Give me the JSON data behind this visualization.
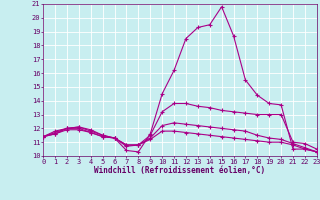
{
  "xlabel": "Windchill (Refroidissement éolien,°C)",
  "bg_color": "#c8eef0",
  "grid_color": "#ffffff",
  "line_color": "#aa0088",
  "xmin": 0,
  "xmax": 23,
  "ymin": 10,
  "ymax": 21,
  "lines": [
    {
      "x": [
        0,
        1,
        2,
        3,
        4,
        5,
        6,
        7,
        8,
        9,
        10,
        11,
        12,
        13,
        14,
        15,
        16,
        17,
        18,
        19,
        20,
        21,
        22,
        23
      ],
      "y": [
        11.4,
        11.8,
        12.0,
        12.1,
        11.9,
        11.5,
        11.3,
        10.4,
        10.3,
        11.6,
        14.5,
        16.2,
        18.5,
        19.3,
        19.5,
        20.8,
        18.7,
        15.5,
        14.4,
        13.8,
        13.7,
        10.5,
        10.5,
        10.3
      ]
    },
    {
      "x": [
        0,
        1,
        2,
        3,
        4,
        5,
        6,
        7,
        8,
        9,
        10,
        11,
        12,
        13,
        14,
        15,
        16,
        17,
        18,
        19,
        20,
        21,
        22,
        23
      ],
      "y": [
        11.4,
        11.7,
        12.0,
        12.1,
        11.8,
        11.5,
        11.3,
        10.7,
        10.8,
        11.5,
        13.2,
        13.8,
        13.8,
        13.6,
        13.5,
        13.3,
        13.2,
        13.1,
        13.0,
        13.0,
        13.0,
        11.0,
        10.9,
        10.5
      ]
    },
    {
      "x": [
        0,
        1,
        2,
        3,
        4,
        5,
        6,
        7,
        8,
        9,
        10,
        11,
        12,
        13,
        14,
        15,
        16,
        17,
        18,
        19,
        20,
        21,
        22,
        23
      ],
      "y": [
        11.4,
        11.6,
        12.0,
        12.0,
        11.7,
        11.4,
        11.3,
        10.8,
        10.8,
        11.3,
        12.2,
        12.4,
        12.3,
        12.2,
        12.1,
        12.0,
        11.9,
        11.8,
        11.5,
        11.3,
        11.2,
        10.9,
        10.6,
        10.3
      ]
    },
    {
      "x": [
        0,
        1,
        2,
        3,
        4,
        5,
        6,
        7,
        8,
        9,
        10,
        11,
        12,
        13,
        14,
        15,
        16,
        17,
        18,
        19,
        20,
        21,
        22,
        23
      ],
      "y": [
        11.4,
        11.6,
        11.9,
        11.9,
        11.7,
        11.4,
        11.3,
        10.8,
        10.8,
        11.2,
        11.8,
        11.8,
        11.7,
        11.6,
        11.5,
        11.4,
        11.3,
        11.2,
        11.1,
        11.0,
        11.0,
        10.8,
        10.5,
        10.3
      ]
    }
  ],
  "tick_fontsize": 5,
  "label_fontsize": 5.5,
  "linewidth": 0.8
}
